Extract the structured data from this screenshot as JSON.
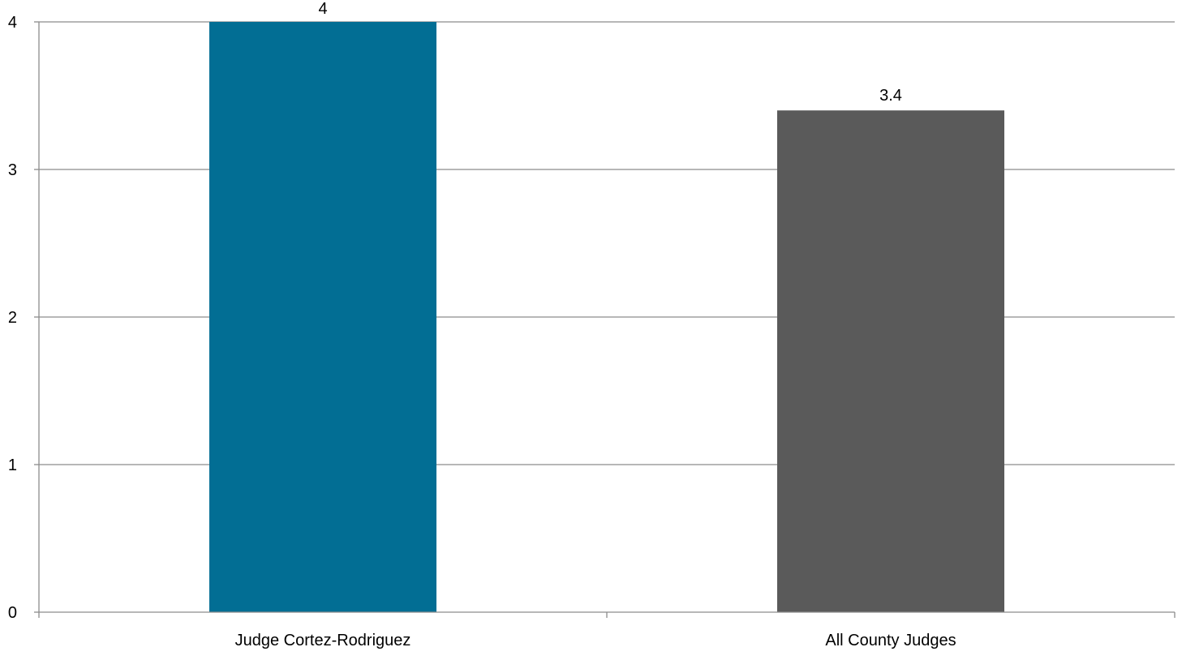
{
  "chart_data": {
    "type": "bar",
    "categories": [
      "Judge Cortez-Rodriguez",
      "All County Judges"
    ],
    "values": [
      4,
      3.4
    ],
    "value_labels": [
      "4",
      "3.4"
    ],
    "colors": [
      "#026e94",
      "#5a5a5a"
    ],
    "title": "",
    "xlabel": "",
    "ylabel": "",
    "ylim": [
      0,
      4
    ],
    "yticks": [
      0,
      1,
      2,
      3,
      4
    ],
    "grid": true,
    "gridline_color": "#8c8c8c",
    "legend": false
  }
}
